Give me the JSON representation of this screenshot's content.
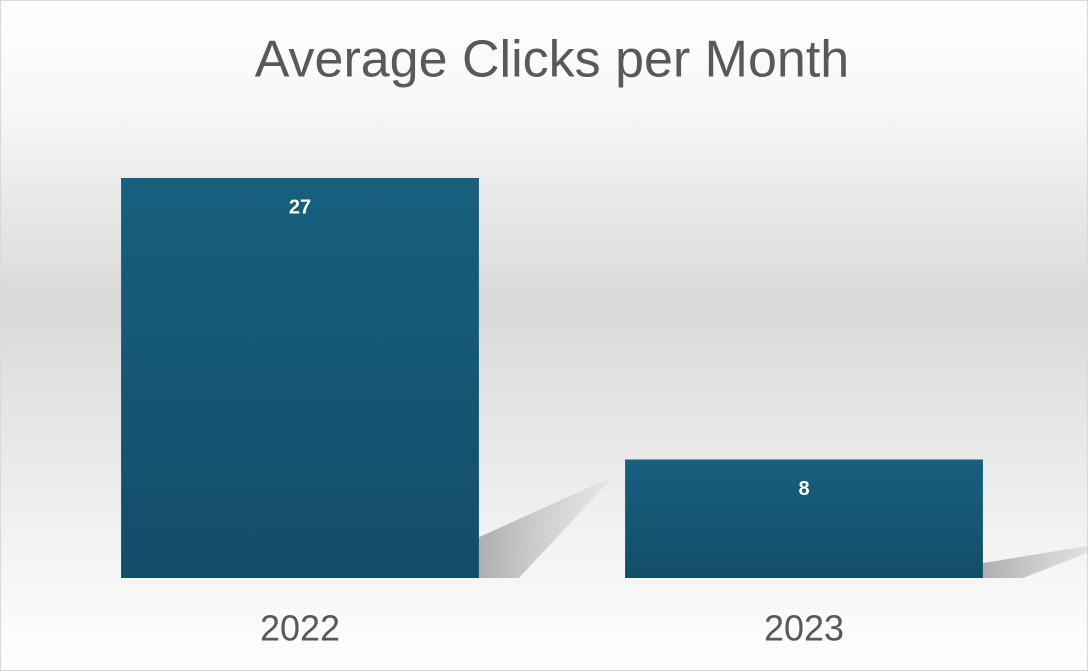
{
  "chart_data": {
    "type": "bar",
    "title": "Average Clicks per Month",
    "categories": [
      "2022",
      "2023"
    ],
    "values": [
      27,
      8
    ],
    "color": "#156082"
  }
}
